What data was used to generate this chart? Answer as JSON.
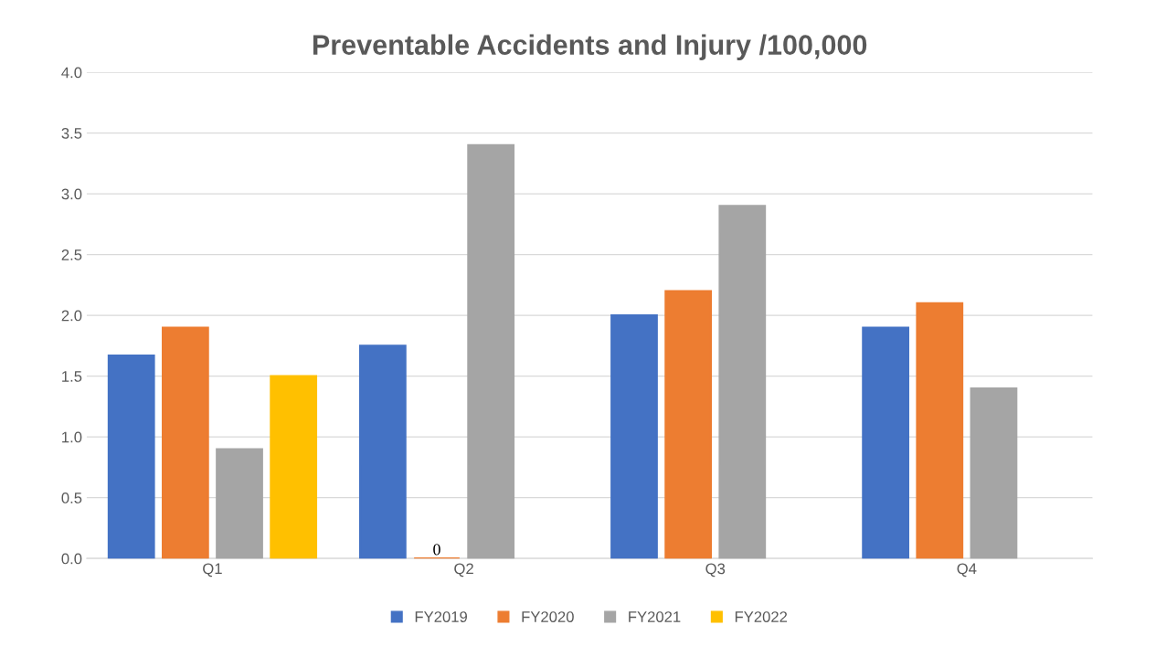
{
  "chart_data": {
    "type": "bar",
    "title": "Preventable Accidents and Injury /100,000",
    "categories": [
      "Q1",
      "Q2",
      "Q3",
      "Q4"
    ],
    "series": [
      {
        "name": "FY2019",
        "color": "#4472c4",
        "values": [
          1.67,
          1.75,
          2.0,
          1.9
        ]
      },
      {
        "name": "FY2020",
        "color": "#ed7d31",
        "values": [
          1.9,
          0,
          2.2,
          2.1
        ],
        "value_labels": [
          null,
          "0",
          null,
          null
        ]
      },
      {
        "name": "FY2021",
        "color": "#a5a5a5",
        "values": [
          0.9,
          3.4,
          2.9,
          1.4
        ]
      },
      {
        "name": "FY2022",
        "color": "#ffc000",
        "values": [
          1.5,
          null,
          null,
          null
        ]
      }
    ],
    "ylim": [
      0,
      4.0
    ],
    "yticks": [
      {
        "value": 0,
        "label": "0.0"
      },
      {
        "value": 0.5,
        "label": "0.5"
      },
      {
        "value": 1.0,
        "label": "1.0"
      },
      {
        "value": 1.5,
        "label": "1.5"
      },
      {
        "value": 2.0,
        "label": "2.0"
      },
      {
        "value": 2.5,
        "label": "2.5"
      },
      {
        "value": 3.0,
        "label": "3.0"
      },
      {
        "value": 3.5,
        "label": "3.5"
      },
      {
        "value": 4.0,
        "label": "4.0"
      }
    ],
    "grid": "y",
    "legend": "bottom"
  }
}
